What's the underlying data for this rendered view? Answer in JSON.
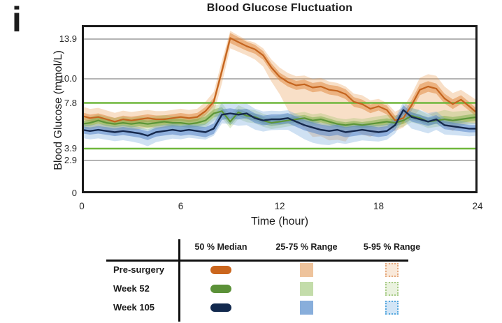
{
  "panel_label": "i",
  "chart": {
    "title": "Blood Glucose Fluctuation",
    "ylabel": "Blood Glucose (mmol/L)",
    "xlabel": "Time (hour)"
  },
  "chart_data": {
    "type": "line",
    "title": "Blood Glucose Fluctuation",
    "xlabel": "Time (hour)",
    "ylabel": "Blood Glucose (mmol/L)",
    "xlim": [
      0,
      24
    ],
    "ylim": [
      0,
      15.3
    ],
    "x_ticks": [
      {
        "label": "0",
        "value": 0
      },
      {
        "label": "6",
        "value": 6
      },
      {
        "label": "12",
        "value": 12
      },
      {
        "label": "18",
        "value": 18
      },
      {
        "label": "24",
        "value": 24
      }
    ],
    "y_ticks": [
      {
        "label": "13.9",
        "value": 13.9
      },
      {
        "label": "10.0",
        "value": 10
      },
      {
        "label": "7.8",
        "value": 7.8
      },
      {
        "label": "3.9",
        "value": 3.9
      },
      {
        "label": "2.9",
        "value": 2.9
      },
      {
        "label": "0",
        "value": 0
      }
    ],
    "gridlines_y": [
      13.9,
      10.0,
      2.9
    ],
    "gridline_color": "#b4b4b4",
    "reference_lines_y": [
      7.8,
      3.9
    ],
    "reference_line_color": "#6fb73c",
    "legend_position": "bottom-table",
    "grid": true,
    "x_step_hours": 0.5,
    "series": [
      {
        "name": "Pre-surgery",
        "color": "#c4641e",
        "fill95": "rgba(233,150,70,0.30)",
        "fill25": "rgba(224,130,50,0.48)",
        "median": [
          6.7,
          6.5,
          6.6,
          6.4,
          6.2,
          6.4,
          6.3,
          6.4,
          6.5,
          6.4,
          6.4,
          6.5,
          6.6,
          6.5,
          6.6,
          7.1,
          7.9,
          10.8,
          14.0,
          13.6,
          13.2,
          12.9,
          12.3,
          11.1,
          10.2,
          9.7,
          9.4,
          9.5,
          9.2,
          9.3,
          9.0,
          8.9,
          8.6,
          7.9,
          7.7,
          7.3,
          7.5,
          7.2,
          6.3,
          6.5,
          7.6,
          9.0,
          9.3,
          9.1,
          8.2,
          7.7,
          8.1,
          7.5,
          6.9
        ],
        "hw25": [
          [
            0,
            0.3
          ],
          [
            8,
            0.35
          ],
          [
            9,
            0.5
          ],
          [
            10,
            0.45
          ],
          [
            12,
            0.4
          ],
          [
            16,
            0.45
          ],
          [
            18,
            0.35
          ],
          [
            20.5,
            0.5
          ],
          [
            22,
            0.45
          ],
          [
            24,
            0.35
          ]
        ],
        "hw95_up": [
          [
            0,
            0.8
          ],
          [
            4,
            0.7
          ],
          [
            7,
            0.7
          ],
          [
            8.5,
            1.0
          ],
          [
            9,
            0.7
          ],
          [
            10,
            0.6
          ],
          [
            11,
            0.7
          ],
          [
            12,
            0.9
          ],
          [
            14,
            0.8
          ],
          [
            16,
            0.7
          ],
          [
            17,
            0.8
          ],
          [
            18.5,
            0.6
          ],
          [
            19.5,
            0.9
          ],
          [
            20.5,
            1.1
          ],
          [
            21.5,
            1.2
          ],
          [
            22.5,
            1.0
          ],
          [
            23,
            0.9
          ],
          [
            24,
            1.1
          ]
        ],
        "hw95_dn": [
          [
            0,
            1.0
          ],
          [
            4,
            0.8
          ],
          [
            7,
            0.6
          ],
          [
            8.5,
            1.2
          ],
          [
            9,
            1.0
          ],
          [
            10,
            0.9
          ],
          [
            11,
            1.1
          ],
          [
            12,
            1.6
          ],
          [
            12.5,
            2.5
          ],
          [
            13,
            3.4
          ],
          [
            14,
            4.3
          ],
          [
            15,
            4.4
          ],
          [
            16,
            4.1
          ],
          [
            16.5,
            2.4
          ],
          [
            17,
            2.6
          ],
          [
            18,
            2.2
          ],
          [
            19,
            0.9
          ],
          [
            19.5,
            0.8
          ],
          [
            20,
            1.1
          ],
          [
            21,
            2.4
          ],
          [
            21.5,
            2.6
          ],
          [
            22,
            2.4
          ],
          [
            23,
            2.2
          ],
          [
            23.5,
            1.4
          ],
          [
            24,
            0.9
          ]
        ]
      },
      {
        "name": "Week 52",
        "color": "#5c9538",
        "fill95": "rgba(140,185,90,0.28)",
        "fill25": "rgba(125,175,75,0.52)",
        "median": [
          6.0,
          6.1,
          6.3,
          6.1,
          6.0,
          6.1,
          6.0,
          6.1,
          6.0,
          6.1,
          6.2,
          6.1,
          6.1,
          6.0,
          6.1,
          6.3,
          6.9,
          7.1,
          6.2,
          7.0,
          6.7,
          6.6,
          6.3,
          6.1,
          6.2,
          6.3,
          6.4,
          6.5,
          6.3,
          6.4,
          6.2,
          6.0,
          5.9,
          6.0,
          5.9,
          6.0,
          6.1,
          6.2,
          6.1,
          6.3,
          6.7,
          6.5,
          6.2,
          6.3,
          6.4,
          6.3,
          6.4,
          6.5,
          6.6
        ],
        "hw25": [
          [
            0,
            0.25
          ],
          [
            8,
            0.35
          ],
          [
            10,
            0.3
          ],
          [
            16,
            0.25
          ],
          [
            20,
            0.3
          ],
          [
            24,
            0.3
          ]
        ],
        "hw95_up": [
          [
            0,
            0.5
          ],
          [
            7.5,
            0.6
          ],
          [
            8.3,
            0.7
          ],
          [
            9.5,
            0.6
          ],
          [
            12,
            0.55
          ],
          [
            16,
            0.5
          ],
          [
            19,
            0.6
          ],
          [
            20,
            0.7
          ],
          [
            21,
            0.6
          ],
          [
            22,
            0.8
          ],
          [
            23,
            0.7
          ],
          [
            24,
            0.6
          ]
        ],
        "hw95_dn": [
          [
            0,
            0.5
          ],
          [
            8,
            0.6
          ],
          [
            10,
            0.55
          ],
          [
            14,
            0.5
          ],
          [
            18,
            0.45
          ],
          [
            20,
            0.55
          ],
          [
            24,
            0.55
          ]
        ]
      },
      {
        "name": "Week 105",
        "color": "#16294d",
        "fill95": "rgba(110,165,220,0.33)",
        "fill25": "rgba(90,135,200,0.55)",
        "median": [
          5.5,
          5.4,
          5.5,
          5.4,
          5.3,
          5.4,
          5.3,
          5.2,
          5.0,
          5.3,
          5.4,
          5.5,
          5.4,
          5.5,
          5.4,
          5.3,
          5.6,
          6.8,
          6.9,
          6.8,
          6.9,
          6.5,
          6.3,
          6.4,
          6.4,
          6.5,
          6.2,
          5.9,
          5.7,
          5.5,
          5.4,
          5.5,
          5.3,
          5.4,
          5.5,
          5.4,
          5.3,
          5.4,
          5.9,
          7.2,
          6.6,
          6.4,
          6.2,
          6.4,
          5.9,
          5.8,
          5.7,
          5.6,
          5.6
        ],
        "hw25": [
          [
            0,
            0.3
          ],
          [
            8.5,
            0.45
          ],
          [
            10,
            0.4
          ],
          [
            14,
            0.45
          ],
          [
            19.5,
            0.4
          ],
          [
            24,
            0.3
          ]
        ],
        "hw95_up": [
          [
            0,
            0.5
          ],
          [
            7,
            0.55
          ],
          [
            8.5,
            1.1
          ],
          [
            9.5,
            0.9
          ],
          [
            10.5,
            0.8
          ],
          [
            12,
            0.7
          ],
          [
            14,
            0.6
          ],
          [
            17,
            0.55
          ],
          [
            19,
            0.6
          ],
          [
            19.5,
            0.7
          ],
          [
            20.5,
            0.8
          ],
          [
            22,
            0.6
          ],
          [
            24,
            0.5
          ]
        ],
        "hw95_dn": [
          [
            0,
            0.7
          ],
          [
            3,
            0.8
          ],
          [
            4,
            0.9
          ],
          [
            6,
            0.7
          ],
          [
            8,
            0.6
          ],
          [
            9,
            0.9
          ],
          [
            10,
            1.0
          ],
          [
            12,
            0.9
          ],
          [
            13,
            1.1
          ],
          [
            14,
            1.3
          ],
          [
            15,
            1.2
          ],
          [
            16,
            1.0
          ],
          [
            17,
            0.9
          ],
          [
            18,
            0.8
          ],
          [
            19,
            0.7
          ],
          [
            20,
            1.0
          ],
          [
            21,
            1.0
          ],
          [
            22,
            0.8
          ],
          [
            23,
            0.7
          ],
          [
            24,
            0.6
          ]
        ]
      }
    ]
  },
  "legend": {
    "columns": [
      "50 % Median",
      "25-75 % Range",
      "5-95 % Range"
    ],
    "rows": [
      {
        "label": "Pre-surgery",
        "median_color": "#cb661d",
        "range_color": "#eec39c",
        "outer_fill": "#f9e9da",
        "outer_border": "#e6a97e"
      },
      {
        "label": "Week 52",
        "median_color": "#5b9138",
        "range_color": "#c3dcaa",
        "outer_fill": "#eaf2df",
        "outer_border": "#a6cb85"
      },
      {
        "label": "Week 105",
        "median_color": "#12294e",
        "range_color": "#88aedb",
        "outer_fill": "#d2e5f6",
        "outer_border": "#55a8de"
      }
    ]
  }
}
